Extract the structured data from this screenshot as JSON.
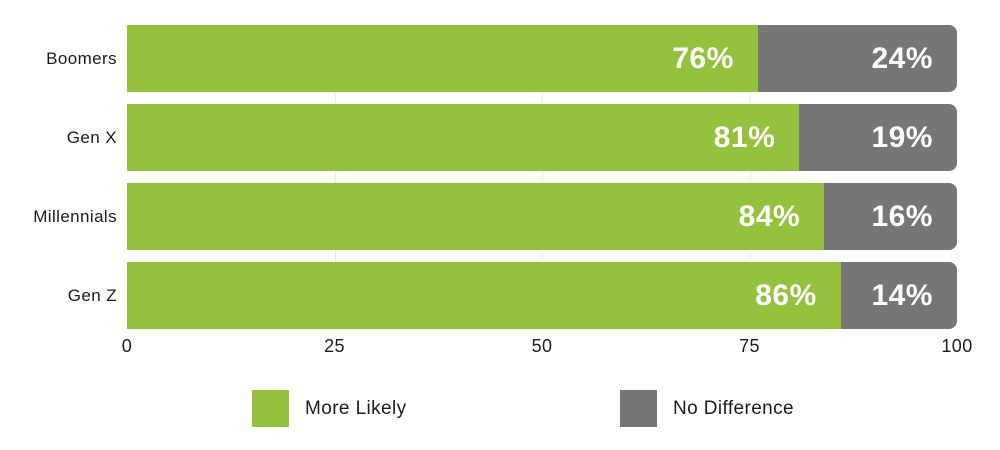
{
  "chart_data": {
    "type": "bar",
    "orientation": "horizontal",
    "stacked": true,
    "title": "",
    "xlabel": "",
    "ylabel": "",
    "categories": [
      "Boomers",
      "Gen X",
      "Millennials",
      "Gen Z"
    ],
    "series": [
      {
        "name": "More Likely",
        "color": "#95C23D",
        "values": [
          76,
          81,
          84,
          86
        ],
        "labels": [
          "76%",
          "81%",
          "84%",
          "86%"
        ]
      },
      {
        "name": "No Difference",
        "color": "#767676",
        "values": [
          24,
          19,
          16,
          14
        ],
        "labels": [
          "24%",
          "19%",
          "16%",
          "14%"
        ]
      }
    ],
    "xlim": [
      0,
      100
    ],
    "x_ticks": [
      0,
      25,
      50,
      75,
      100
    ],
    "x_tick_labels": [
      "0",
      "25",
      "50",
      "75",
      "100"
    ],
    "grid": "vertical-light-gridlines-at-25-50-75",
    "legend_position": "bottom"
  },
  "legend": {
    "items": [
      {
        "label": "More Likely",
        "color": "#95C23D"
      },
      {
        "label": "No Difference",
        "color": "#767676"
      }
    ]
  },
  "colors": {
    "background": "#ffffff",
    "more_likely": "#95C23D",
    "no_difference": "#767676",
    "label_text": "#1c1c1c",
    "value_text": "#ffffff",
    "gridline": "#eaeaea"
  }
}
